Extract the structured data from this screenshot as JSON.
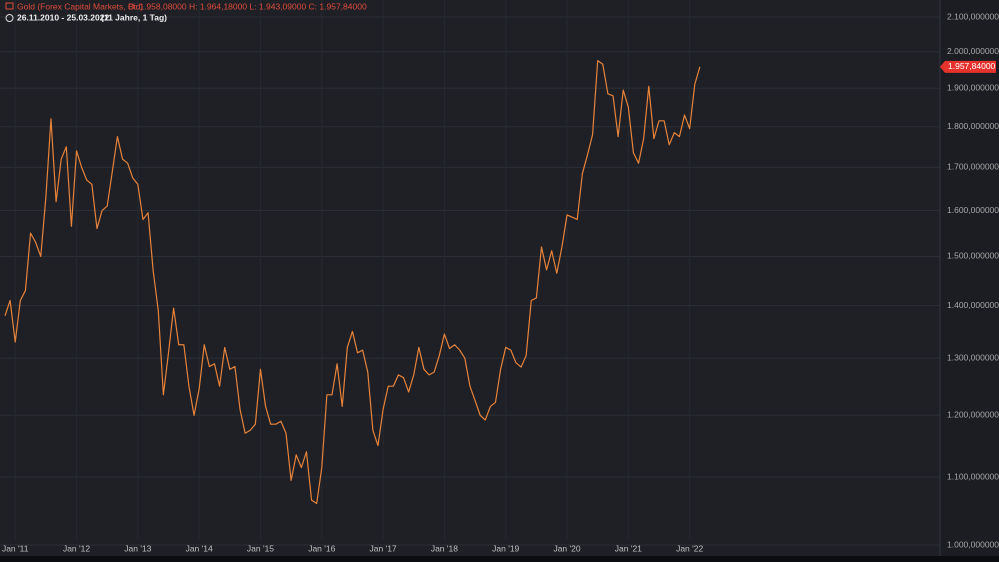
{
  "chart_data": {
    "type": "line",
    "title": "Gold (Forex Capital Markets, Bid)",
    "ohlc": "O: 1.958,08000  H: 1.964,18000  L: 1.943,09000  C: 1.957,84000",
    "range_label": "26.11.2010 - 25.03.2022",
    "range_note": "(11 Jahre, 1 Tag)",
    "log_scale": true,
    "grid": true,
    "last_value": {
      "value": 1957.84,
      "label": "1.957,84000"
    },
    "xlim": [
      "2010-11",
      "2026-02"
    ],
    "ylim": [
      1000,
      2100
    ],
    "xticks": [
      {
        "value": "2011-01",
        "label": "Jan '11"
      },
      {
        "value": "2012-01",
        "label": "Jan '12"
      },
      {
        "value": "2013-01",
        "label": "Jan '13"
      },
      {
        "value": "2014-01",
        "label": "Jan '14"
      },
      {
        "value": "2015-01",
        "label": "Jan '15"
      },
      {
        "value": "2016-01",
        "label": "Jan '16"
      },
      {
        "value": "2017-01",
        "label": "Jan '17"
      },
      {
        "value": "2018-01",
        "label": "Jan '18"
      },
      {
        "value": "2019-01",
        "label": "Jan '19"
      },
      {
        "value": "2020-01",
        "label": "Jan '20"
      },
      {
        "value": "2021-01",
        "label": "Jan '21"
      },
      {
        "value": "2022-01",
        "label": "Jan '22"
      }
    ],
    "yticks": [
      {
        "value": 1000,
        "label": "1.000,000000"
      },
      {
        "value": 1100,
        "label": "1.100,000000"
      },
      {
        "value": 1200,
        "label": "1.200,000000"
      },
      {
        "value": 1300,
        "label": "1.300,000000"
      },
      {
        "value": 1400,
        "label": "1.400,000000"
      },
      {
        "value": 1500,
        "label": "1.500,000000"
      },
      {
        "value": 1600,
        "label": "1.600,000000"
      },
      {
        "value": 1700,
        "label": "1.700,000000"
      },
      {
        "value": 1800,
        "label": "1.800,000000"
      },
      {
        "value": 1900,
        "label": "1.900,000000"
      },
      {
        "value": 2000,
        "label": "2.000,000000"
      },
      {
        "value": 2100,
        "label": "2.100,000000"
      }
    ],
    "x": [
      "2010-11",
      "2010-12",
      "2011-01",
      "2011-02",
      "2011-03",
      "2011-04",
      "2011-05",
      "2011-06",
      "2011-07",
      "2011-08",
      "2011-09",
      "2011-10",
      "2011-11",
      "2011-12",
      "2012-01",
      "2012-02",
      "2012-03",
      "2012-04",
      "2012-05",
      "2012-06",
      "2012-07",
      "2012-08",
      "2012-09",
      "2012-10",
      "2012-11",
      "2012-12",
      "2013-01",
      "2013-02",
      "2013-03",
      "2013-04",
      "2013-05",
      "2013-06",
      "2013-07",
      "2013-08",
      "2013-09",
      "2013-10",
      "2013-11",
      "2013-12",
      "2014-01",
      "2014-02",
      "2014-03",
      "2014-04",
      "2014-05",
      "2014-06",
      "2014-07",
      "2014-08",
      "2014-09",
      "2014-10",
      "2014-11",
      "2014-12",
      "2015-01",
      "2015-02",
      "2015-03",
      "2015-04",
      "2015-05",
      "2015-06",
      "2015-07",
      "2015-08",
      "2015-09",
      "2015-10",
      "2015-11",
      "2015-12",
      "2016-01",
      "2016-02",
      "2016-03",
      "2016-04",
      "2016-05",
      "2016-06",
      "2016-07",
      "2016-08",
      "2016-09",
      "2016-10",
      "2016-11",
      "2016-12",
      "2017-01",
      "2017-02",
      "2017-03",
      "2017-04",
      "2017-05",
      "2017-06",
      "2017-07",
      "2017-08",
      "2017-09",
      "2017-10",
      "2017-11",
      "2017-12",
      "2018-01",
      "2018-02",
      "2018-03",
      "2018-04",
      "2018-05",
      "2018-06",
      "2018-07",
      "2018-08",
      "2018-09",
      "2018-10",
      "2018-11",
      "2018-12",
      "2019-01",
      "2019-02",
      "2019-03",
      "2019-04",
      "2019-05",
      "2019-06",
      "2019-07",
      "2019-08",
      "2019-09",
      "2019-10",
      "2019-11",
      "2019-12",
      "2020-01",
      "2020-02",
      "2020-03",
      "2020-04",
      "2020-05",
      "2020-06",
      "2020-07",
      "2020-08",
      "2020-09",
      "2020-10",
      "2020-11",
      "2020-12",
      "2021-01",
      "2021-02",
      "2021-03",
      "2021-04",
      "2021-05",
      "2021-06",
      "2021-07",
      "2021-08",
      "2021-09",
      "2021-10",
      "2021-11",
      "2021-12",
      "2022-01",
      "2022-02",
      "2022-03"
    ],
    "series": [
      {
        "name": "Gold",
        "color": "#e8833a",
        "values": [
          1380,
          1410,
          1330,
          1410,
          1430,
          1550,
          1530,
          1500,
          1630,
          1820,
          1620,
          1720,
          1750,
          1565,
          1740,
          1700,
          1670,
          1660,
          1560,
          1600,
          1610,
          1690,
          1775,
          1720,
          1710,
          1675,
          1660,
          1580,
          1595,
          1470,
          1390,
          1235,
          1310,
          1395,
          1325,
          1325,
          1250,
          1200,
          1245,
          1325,
          1285,
          1290,
          1250,
          1320,
          1280,
          1285,
          1210,
          1170,
          1175,
          1185,
          1280,
          1215,
          1185,
          1185,
          1190,
          1170,
          1095,
          1135,
          1115,
          1140,
          1065,
          1060,
          1115,
          1235,
          1235,
          1290,
          1215,
          1320,
          1350,
          1310,
          1315,
          1275,
          1175,
          1150,
          1210,
          1250,
          1250,
          1270,
          1265,
          1240,
          1270,
          1320,
          1280,
          1270,
          1275,
          1305,
          1345,
          1318,
          1325,
          1315,
          1300,
          1250,
          1225,
          1200,
          1192,
          1215,
          1222,
          1280,
          1320,
          1315,
          1292,
          1284,
          1305,
          1410,
          1415,
          1520,
          1472,
          1512,
          1465,
          1520,
          1590,
          1585,
          1580,
          1685,
          1730,
          1780,
          1975,
          1965,
          1885,
          1880,
          1775,
          1895,
          1850,
          1735,
          1710,
          1770,
          1905,
          1770,
          1815,
          1815,
          1755,
          1785,
          1775,
          1830,
          1795,
          1910,
          1958
        ]
      }
    ]
  }
}
